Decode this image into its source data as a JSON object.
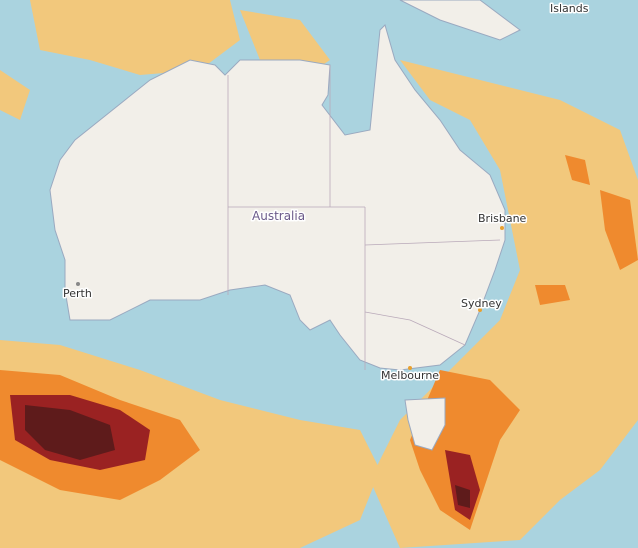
{
  "map": {
    "labels": [
      {
        "name": "Islands"
      },
      {
        "name": "Australia"
      },
      {
        "name": "Brisbane"
      },
      {
        "name": "Perth"
      },
      {
        "name": "Sydney"
      },
      {
        "name": "Melbourne"
      }
    ]
  }
}
